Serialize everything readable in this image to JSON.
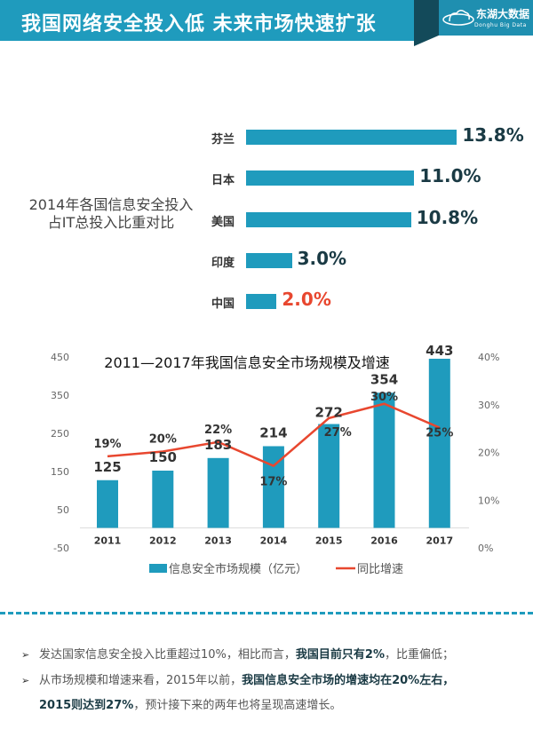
{
  "header": {
    "title": "我国网络安全投入低 未来市场快速扩张",
    "logo_cn": "东湖大数据",
    "logo_en": "Donghu Big Data"
  },
  "chart_data": [
    {
      "type": "bar",
      "orientation": "horizontal",
      "title": "2014年各国信息安全投入占IT总投入比重对比",
      "title_lines": [
        "2014年各国信息安全投入",
        "占IT总投入比重对比"
      ],
      "categories": [
        "芬兰",
        "日本",
        "美国",
        "印度",
        "中国"
      ],
      "values": [
        13.8,
        11.0,
        10.8,
        3.0,
        2.0
      ],
      "labels": [
        "13.8%",
        "11.0%",
        "10.8%",
        "3.0%",
        "2.0%"
      ],
      "colors": {
        "bar": "#1f9bbd",
        "label": "#1a3a44",
        "highlight": "#e8472f"
      }
    },
    {
      "type": "bar+line",
      "title": "2011—2017年我国信息安全市场规模及增速",
      "categories": [
        "2011",
        "2012",
        "2013",
        "2014",
        "2015",
        "2016",
        "2017"
      ],
      "series": [
        {
          "name": "信息安全市场规模（亿元）",
          "type": "bar",
          "axis": "left",
          "values": [
            125,
            150,
            183,
            214,
            272,
            354,
            443
          ],
          "color": "#1f9bbd"
        },
        {
          "name": "同比增速",
          "type": "line",
          "axis": "right",
          "values": [
            19,
            20,
            22,
            17,
            27,
            30,
            25
          ],
          "labels": [
            "19%",
            "20%",
            "22%",
            "17%",
            "27%",
            "30%",
            "25%"
          ],
          "color": "#e8472f"
        }
      ],
      "y_left": {
        "range": [
          -50,
          450
        ],
        "ticks": [
          "450",
          "350",
          "250",
          "150",
          "50",
          "-50"
        ]
      },
      "y_right": {
        "range": [
          0,
          40
        ],
        "ticks": [
          "40%",
          "30%",
          "20%",
          "10%",
          "0%"
        ]
      },
      "legend": "bottom",
      "grid": false
    }
  ],
  "bullets": [
    {
      "parts": [
        {
          "t": "发达国家信息安全投入比重超过10%，相比而言，",
          "b": false
        },
        {
          "t": "我国目前只有2%",
          "b": true
        },
        {
          "t": "，比重偏低；",
          "b": false
        }
      ]
    },
    {
      "parts": [
        {
          "t": "从市场规模和增速来看，2015年以前，",
          "b": false
        },
        {
          "t": "我国信息安全市场的增速均在20%左右，",
          "b": true
        }
      ]
    },
    {
      "parts": [
        {
          "t": "2015则达到27%",
          "b": true
        },
        {
          "t": "，预计接下来的两年也将呈现高速增长。",
          "b": false
        }
      ]
    }
  ]
}
